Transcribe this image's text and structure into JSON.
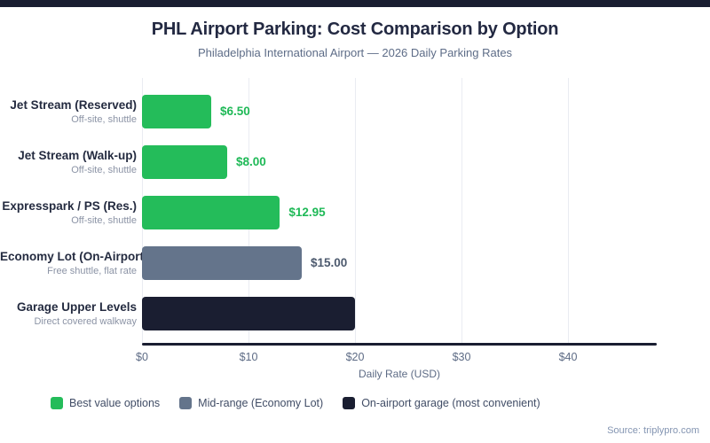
{
  "header": {
    "title": "PHL Airport Parking: Cost Comparison by Option",
    "subtitle": "Philadelphia International Airport — 2026 Daily Parking Rates"
  },
  "chart_data": {
    "type": "bar",
    "orientation": "horizontal",
    "title": "PHL Airport Parking: Cost Comparison by Option",
    "subtitle": "Philadelphia International Airport — 2026 Daily Parking Rates",
    "xlabel": "Daily Rate (USD)",
    "xlim": [
      0,
      48
    ],
    "grid": "vertical",
    "legend_position": "bottom",
    "bars": [
      {
        "label": "Jet Stream (Reserved)",
        "sublabel": "Off-site, shuttle",
        "value": 6.5,
        "value_label": "$6.50",
        "group": "best-value",
        "color": "#24bc5a",
        "value_color": "#1fb957"
      },
      {
        "label": "Jet Stream (Walk-up)",
        "sublabel": "Off-site, shuttle",
        "value": 8.0,
        "value_label": "$8.00",
        "group": "best-value",
        "color": "#24bc5a",
        "value_color": "#1fb957"
      },
      {
        "label": "Expresspark / PS (Res.)",
        "sublabel": "Off-site, shuttle",
        "value": 12.95,
        "value_label": "$12.95",
        "group": "best-value",
        "color": "#24bc5a",
        "value_color": "#1fb957"
      },
      {
        "label": "Economy Lot (On-Airport)",
        "sublabel": "Free shuttle, flat rate",
        "value": 15.0,
        "value_label": "$15.00",
        "group": "mid-range",
        "color": "#64748b",
        "value_color": "#4d5a6e"
      },
      {
        "label": "Garage Upper Levels",
        "sublabel": "Direct covered walkway",
        "value": 20.0,
        "value_label": "",
        "group": "garage",
        "color": "#1a1e31",
        "value_color": "#1a1e31"
      }
    ],
    "x_ticks": [
      {
        "value": 0,
        "label": "$0"
      },
      {
        "value": 10,
        "label": "$10"
      },
      {
        "value": 20,
        "label": "$20"
      },
      {
        "value": 30,
        "label": "$30"
      },
      {
        "value": 40,
        "label": "$40"
      }
    ],
    "legend": [
      {
        "label": "Best value options",
        "color": "#24bc5a"
      },
      {
        "label": "Mid-range (Economy Lot)",
        "color": "#64748b"
      },
      {
        "label": "On-airport garage (most convenient)",
        "color": "#1a1e31"
      }
    ]
  },
  "source": {
    "text": "Source: triplypro.com"
  }
}
